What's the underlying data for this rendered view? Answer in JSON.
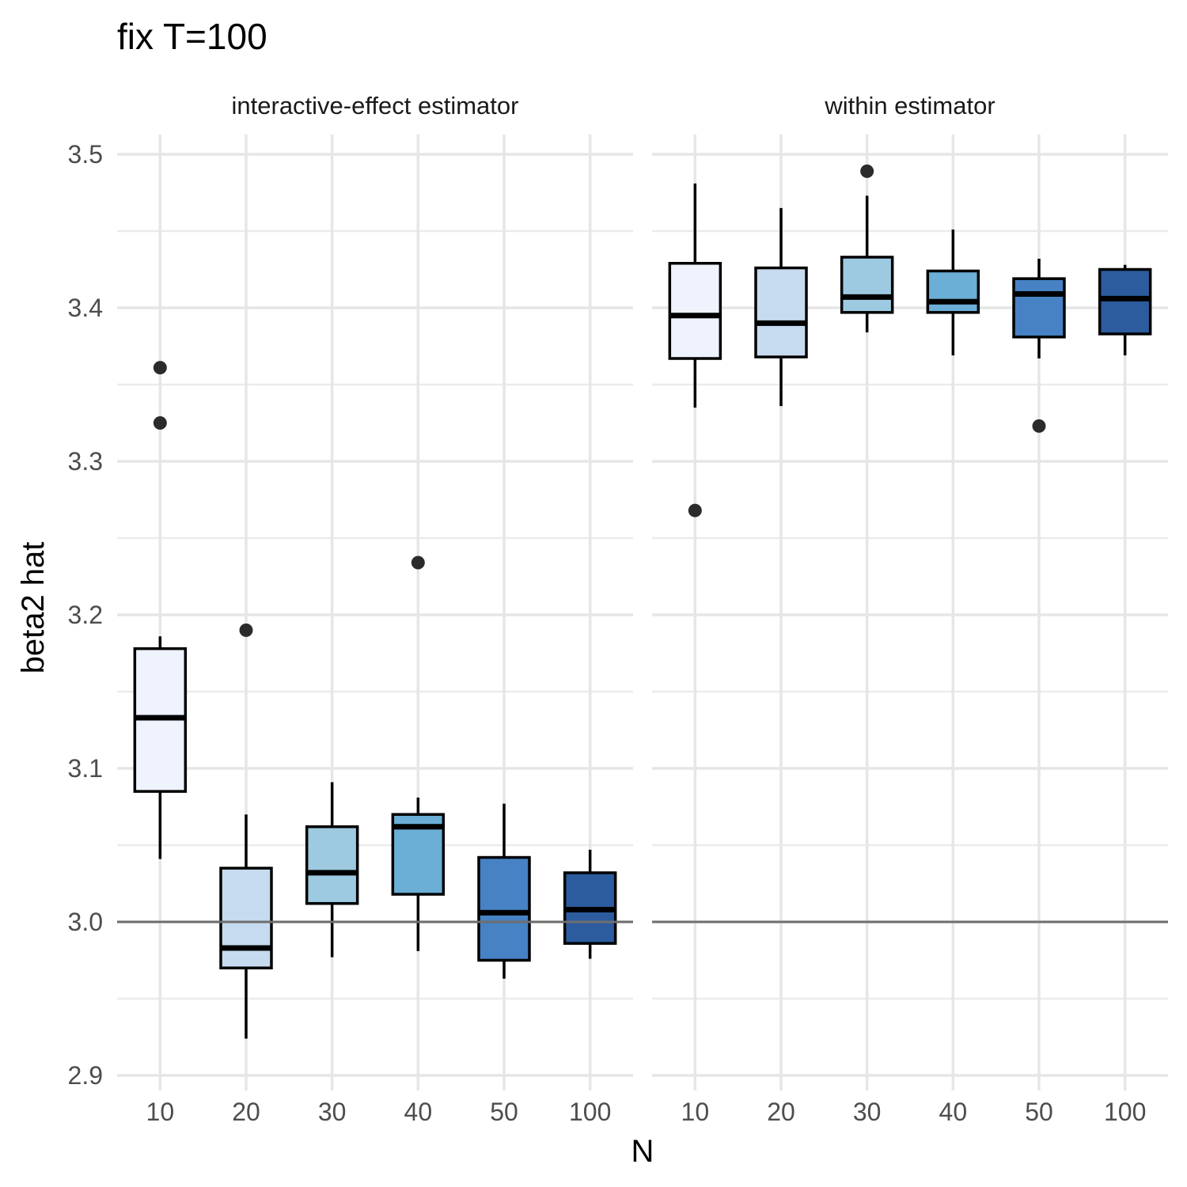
{
  "chart_data": {
    "type": "boxplot",
    "title": "fix T=100",
    "xlabel": "N",
    "ylabel": "beta2 hat",
    "categories": [
      "10",
      "20",
      "30",
      "40",
      "50",
      "100"
    ],
    "ylim": [
      2.9,
      3.5
    ],
    "yticks": [
      "2.9",
      "3.0",
      "3.1",
      "3.2",
      "3.3",
      "3.4",
      "3.5"
    ],
    "reference_y": 3.0,
    "grid": true,
    "legend": "none",
    "fill_colors": [
      "#eef3fd",
      "#c6dbef",
      "#9ecae1",
      "#6baed6",
      "#4682c4",
      "#2c5c9e"
    ],
    "panels": [
      {
        "label": "interactive-effect estimator",
        "boxes": [
          {
            "category": "10",
            "low": 3.041,
            "q1": 3.085,
            "median": 3.133,
            "q3": 3.178,
            "high": 3.186,
            "outliers": [
              3.361,
              3.325
            ]
          },
          {
            "category": "20",
            "low": 2.924,
            "q1": 2.97,
            "median": 2.983,
            "q3": 3.035,
            "high": 3.07,
            "outliers": [
              3.19
            ]
          },
          {
            "category": "30",
            "low": 2.977,
            "q1": 3.012,
            "median": 3.032,
            "q3": 3.062,
            "high": 3.091,
            "outliers": []
          },
          {
            "category": "40",
            "low": 2.981,
            "q1": 3.018,
            "median": 3.062,
            "q3": 3.07,
            "high": 3.081,
            "outliers": [
              3.234
            ]
          },
          {
            "category": "50",
            "low": 2.963,
            "q1": 2.975,
            "median": 3.006,
            "q3": 3.042,
            "high": 3.077,
            "outliers": []
          },
          {
            "category": "100",
            "low": 2.976,
            "q1": 2.986,
            "median": 3.008,
            "q3": 3.032,
            "high": 3.047,
            "outliers": []
          }
        ]
      },
      {
        "label": "within estimator",
        "boxes": [
          {
            "category": "10",
            "low": 3.335,
            "q1": 3.367,
            "median": 3.395,
            "q3": 3.429,
            "high": 3.481,
            "outliers": [
              3.268
            ]
          },
          {
            "category": "20",
            "low": 3.336,
            "q1": 3.368,
            "median": 3.39,
            "q3": 3.426,
            "high": 3.465,
            "outliers": []
          },
          {
            "category": "30",
            "low": 3.384,
            "q1": 3.397,
            "median": 3.407,
            "q3": 3.433,
            "high": 3.473,
            "outliers": [
              3.489
            ]
          },
          {
            "category": "40",
            "low": 3.369,
            "q1": 3.397,
            "median": 3.404,
            "q3": 3.424,
            "high": 3.451,
            "outliers": []
          },
          {
            "category": "50",
            "low": 3.367,
            "q1": 3.381,
            "median": 3.409,
            "q3": 3.419,
            "high": 3.432,
            "outliers": [
              3.323
            ]
          },
          {
            "category": "100",
            "low": 3.369,
            "q1": 3.383,
            "median": 3.406,
            "q3": 3.425,
            "high": 3.428,
            "outliers": []
          }
        ]
      }
    ]
  }
}
